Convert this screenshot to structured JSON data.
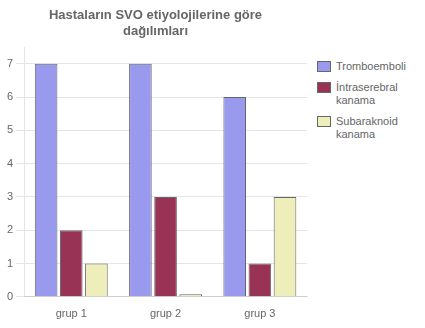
{
  "chart_data": {
    "type": "bar",
    "title": "Hastaların SVO etiyolojilerine göre\ndağılımları",
    "categories": [
      "grup 1",
      "grup 2",
      "grup 3"
    ],
    "series": [
      {
        "name": "Tromboemboli",
        "color": "#9999ee",
        "values": [
          7,
          7,
          6
        ]
      },
      {
        "name": "İntraserebral\nkanama",
        "color": "#993355",
        "values": [
          2,
          3,
          1
        ]
      },
      {
        "name": "Subaraknoid\nkanama",
        "color": "#eeeebb",
        "values": [
          1,
          0.08,
          3
        ]
      }
    ],
    "ylim": [
      0,
      7.5
    ],
    "yticks": [
      0,
      1,
      2,
      3,
      4,
      5,
      6,
      7
    ],
    "grid": true,
    "legend": "right"
  }
}
